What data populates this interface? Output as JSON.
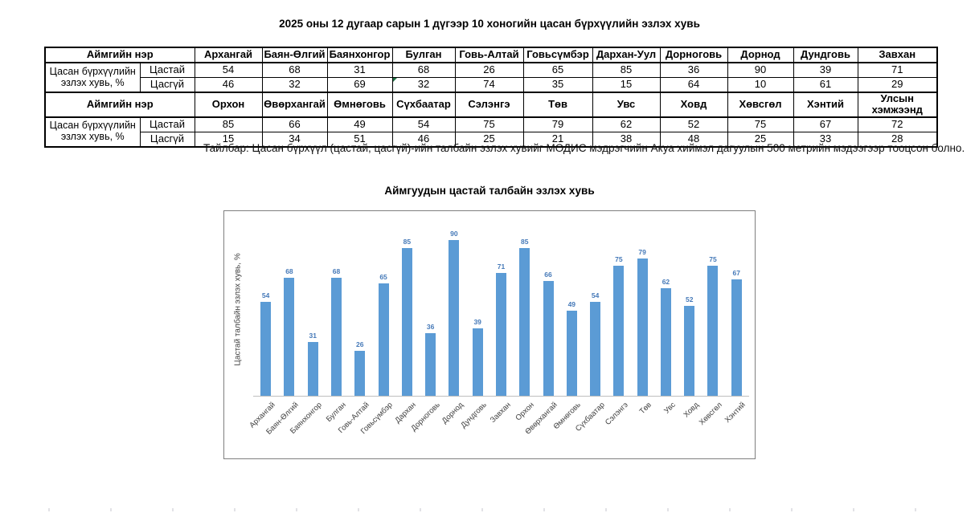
{
  "page": {
    "title": "2025 оны 12 дугаар сарын 1 дүгээр 10 хоногийн цасан бүрхүүлийн эзлэх хувь",
    "note": "Тайлбар: Цасан бүрхүүл (цастай, цасгүй)-ийн талбайн эзлэх хувийг МОДИС мэдрэгчийн Акуа хиймэл дагуулын 500 метрийн мэдээгээр тооцсон болно."
  },
  "table": {
    "sections": [
      {
        "header_label": "Аймгийн нэр",
        "row_label": "Цасан бүрхүүлийн эзлэх хувь, %",
        "columns": [
          "Архангай",
          "Баян-Өлгий",
          "Баянхонгор",
          "Булган",
          "Говь-Алтай",
          "Говьсүмбэр",
          "Дархан-Уул",
          "Дорноговь",
          "Дорнод",
          "Дундговь",
          "Завхан"
        ],
        "rows": [
          {
            "label": "Цастай",
            "values": [
              54,
              68,
              31,
              68,
              26,
              65,
              85,
              36,
              90,
              39,
              71
            ]
          },
          {
            "label": "Цасгүй",
            "values": [
              46,
              32,
              69,
              32,
              74,
              35,
              15,
              64,
              10,
              61,
              29
            ]
          }
        ]
      },
      {
        "header_label": "Аймгийн нэр",
        "row_label": "Цасан бүрхүүлийн эзлэх хувь, %",
        "columns": [
          "Орхон",
          "Өвөрхангай",
          "Өмнөговь",
          "Сүхбаатар",
          "Сэлэнгэ",
          "Төв",
          "Увс",
          "Ховд",
          "Хөвсгөл",
          "Хэнтий",
          "Улсын хэмжээнд"
        ],
        "rows": [
          {
            "label": "Цастай",
            "values": [
              85,
              66,
              49,
              54,
              75,
              79,
              62,
              52,
              75,
              67,
              72
            ]
          },
          {
            "label": "Цасгүй",
            "values": [
              15,
              34,
              51,
              46,
              25,
              21,
              38,
              48,
              25,
              33,
              28
            ]
          }
        ]
      }
    ],
    "error_flag_cell": {
      "section": 0,
      "row_index": 1,
      "column_index": 3,
      "color": "#1F7145"
    }
  },
  "chart_data": {
    "type": "bar",
    "title": "Аймгуудын цастай талбайн эзлэх хувь",
    "ylabel": "Цастай талбайн эзлэх хувь, %",
    "xlabel": "",
    "categories": [
      "Архангай",
      "Баян-Өлгий",
      "Баянхонгор",
      "Булган",
      "Говь-Алтай",
      "Говьсүмбэр",
      "Дархан",
      "Дорноговь",
      "Дорнод",
      "Дундговь",
      "Завхан",
      "Орхон",
      "Өвөрхангай",
      "Өмнөговь",
      "Сүхбаатар",
      "Сэлэнгэ",
      "Төв",
      "Увс",
      "Ховд",
      "Хөвсгөл",
      "Хэнтий"
    ],
    "values": [
      54,
      68,
      31,
      68,
      26,
      65,
      85,
      36,
      90,
      39,
      71,
      85,
      66,
      49,
      54,
      75,
      79,
      62,
      52,
      75,
      67
    ],
    "ylim": [
      0,
      100
    ],
    "grid": false,
    "legend": false,
    "data_labels": true,
    "bar_color": "#5B9BD5",
    "label_color": "#4579B8",
    "axis_line_color": "#BFBFBF"
  }
}
